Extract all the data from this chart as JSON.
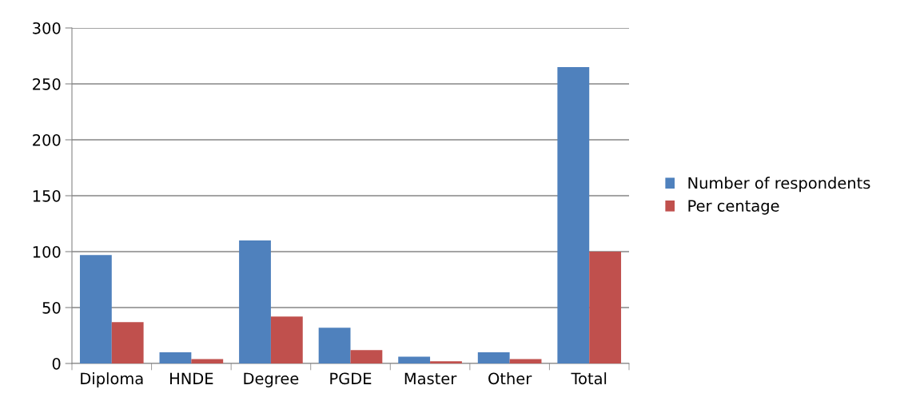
{
  "chart_data": {
    "type": "bar",
    "categories": [
      "Diploma",
      "HNDE",
      "Degree",
      "PGDE",
      "Master",
      "Other",
      "Total"
    ],
    "series": [
      {
        "name": "Number of respondents",
        "color": "#4f81bd",
        "values": [
          97,
          10,
          110,
          32,
          6,
          10,
          265
        ]
      },
      {
        "name": "Per centage",
        "color": "#c0504d",
        "values": [
          37,
          4,
          42,
          12,
          2,
          4,
          100
        ]
      }
    ],
    "ylim": [
      0,
      300
    ],
    "yticks": [
      0,
      50,
      100,
      150,
      200,
      250,
      300
    ],
    "grid": "y",
    "legend": "right"
  }
}
